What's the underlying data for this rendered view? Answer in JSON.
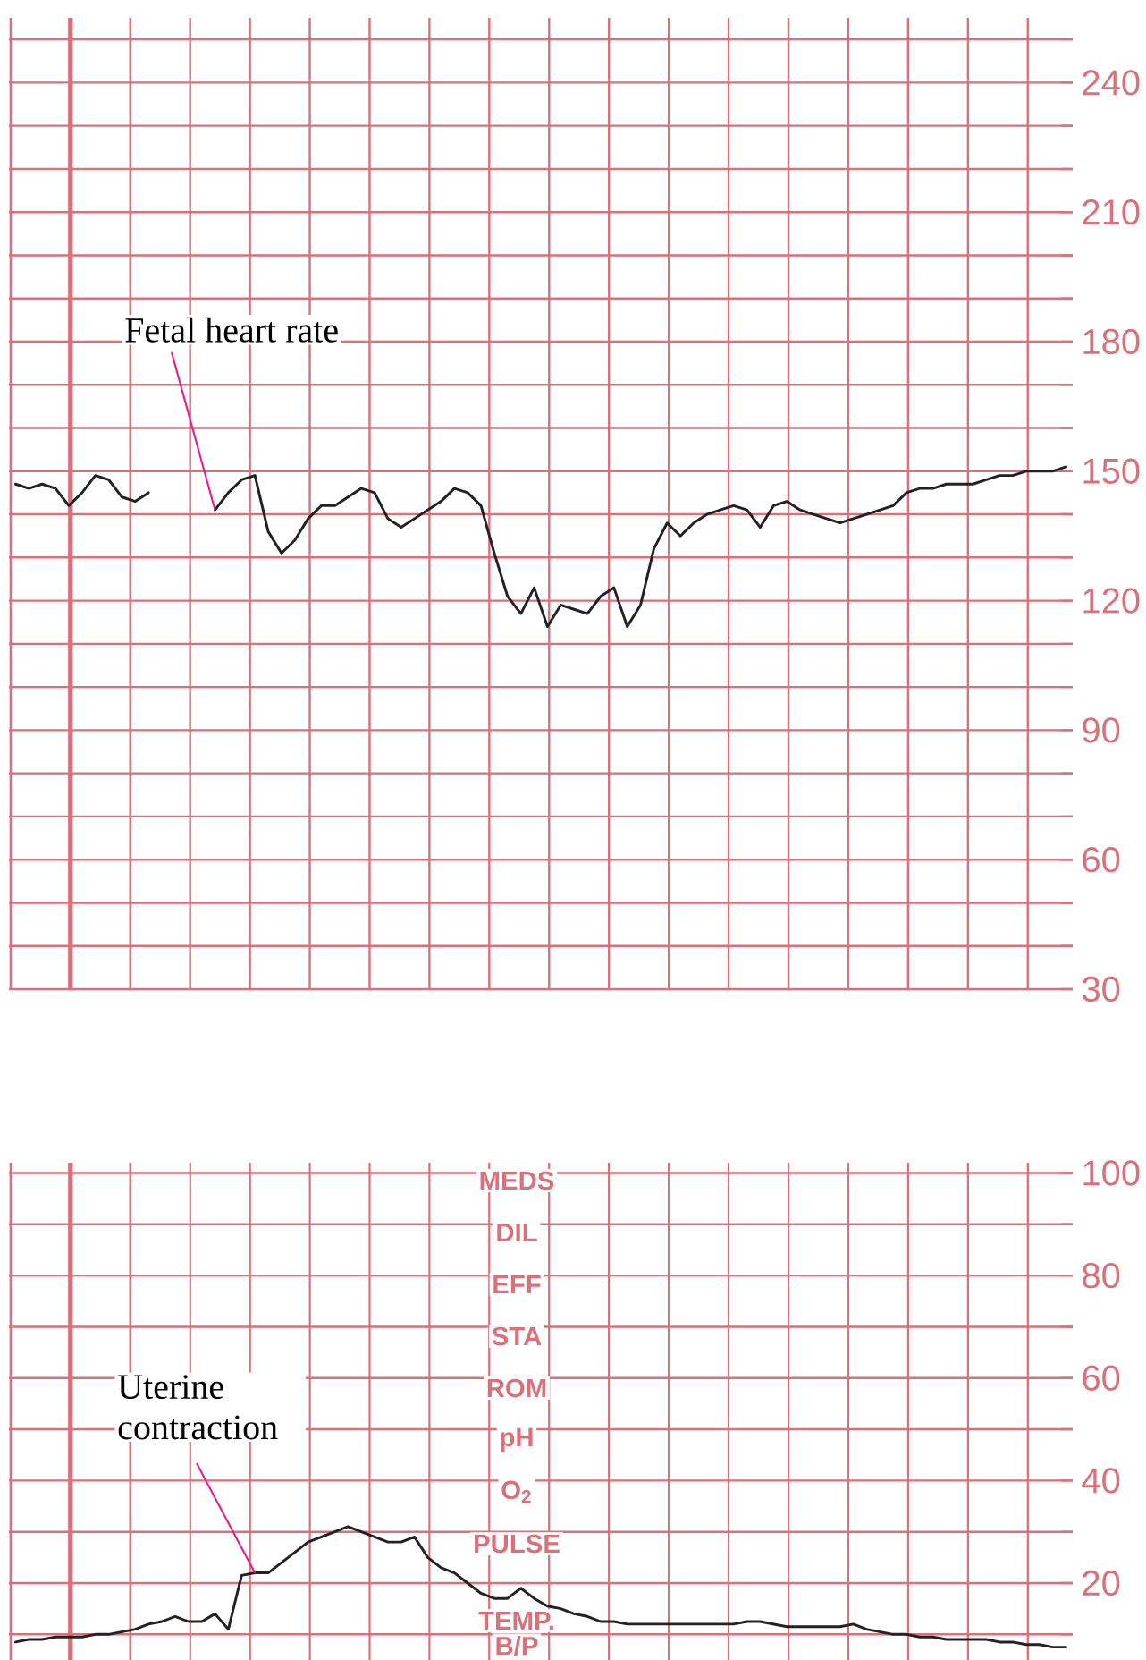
{
  "chart_data": [
    {
      "type": "line",
      "categories": [
        null,
        null,
        null,
        null,
        null,
        null,
        null,
        null,
        null,
        null,
        null,
        null,
        null,
        null,
        null,
        null,
        null,
        null,
        null,
        null,
        null,
        null,
        null,
        null,
        null,
        null,
        null,
        null,
        null,
        null,
        null,
        null,
        null,
        null,
        null,
        null,
        null,
        null,
        null,
        null,
        null,
        null,
        null,
        null,
        null,
        null,
        null,
        null,
        null,
        null,
        null,
        null,
        null,
        null,
        null,
        null,
        null,
        null,
        null,
        null,
        null,
        null,
        null,
        null,
        null,
        null,
        null,
        null,
        null,
        null,
        null,
        null,
        null,
        null,
        null,
        null,
        null,
        null,
        null,
        null
      ],
      "series": [
        {
          "color": "#222222",
          "values": [
            147,
            146,
            147,
            146,
            142,
            145,
            149,
            148,
            144,
            143,
            145,
            null,
            null,
            null,
            null,
            null,
            null,
            null,
            null,
            null,
            null,
            null,
            null,
            null,
            null,
            null,
            null,
            null,
            null,
            null,
            null,
            null,
            null,
            null,
            null,
            null,
            null,
            null,
            null,
            null,
            null,
            null,
            null,
            null,
            null,
            null,
            null,
            null,
            null,
            null,
            null,
            null,
            null,
            null,
            null,
            null,
            null,
            null,
            null,
            null,
            null,
            null,
            null,
            null,
            null,
            null,
            null,
            null,
            null,
            null,
            null,
            null,
            null,
            null,
            null,
            null,
            null,
            null,
            null,
            null
          ]
        },
        {
          "color": "#222222",
          "values": [
            null,
            null,
            null,
            null,
            null,
            null,
            null,
            null,
            null,
            null,
            null,
            null,
            null,
            null,
            null,
            141,
            145,
            148,
            149,
            136,
            131,
            134,
            139,
            142,
            142,
            144,
            146,
            145,
            139,
            137,
            139,
            141,
            143,
            146,
            145,
            142,
            131,
            121,
            117,
            123,
            114,
            119,
            118,
            117,
            121,
            123,
            114,
            119,
            132,
            138,
            135,
            138,
            140,
            141,
            142,
            141,
            137,
            142,
            143,
            141,
            140,
            139,
            138,
            139,
            140,
            141,
            142,
            145,
            146,
            146,
            147,
            147,
            147,
            148,
            149,
            149,
            150,
            150,
            150,
            151
          ]
        }
      ],
      "ylim": [
        30,
        255
      ],
      "yticks": [
        30,
        {
          "value": 40,
          "label": null
        },
        {
          "value": 50,
          "label": null
        },
        60,
        {
          "value": 70,
          "label": null
        },
        {
          "value": 80,
          "label": null
        },
        90,
        {
          "value": 100,
          "label": null
        },
        {
          "value": 110,
          "label": null
        },
        120,
        {
          "value": 130,
          "label": null
        },
        {
          "value": 140,
          "label": null
        },
        150,
        {
          "value": 160,
          "label": null
        },
        {
          "value": 170,
          "label": null
        },
        180,
        {
          "value": 190,
          "label": null
        },
        {
          "value": 200,
          "label": null
        },
        210,
        {
          "value": 220,
          "label": null
        },
        {
          "value": 230,
          "label": null
        },
        240,
        {
          "value": 250,
          "label": null
        }
      ],
      "grid": true,
      "tick_labels": "y",
      "annotations": [
        "Fetal heart rate"
      ]
    },
    {
      "type": "line",
      "categories": [
        null,
        null,
        null,
        null,
        null,
        null,
        null,
        null,
        null,
        null,
        null,
        null,
        null,
        null,
        null,
        null,
        null,
        null,
        null,
        null,
        null,
        null,
        null,
        null,
        null,
        null,
        null,
        null,
        null,
        null,
        null,
        null,
        null,
        null,
        null,
        null,
        null,
        null,
        null,
        null,
        null,
        null,
        null,
        null,
        null,
        null,
        null,
        null,
        null,
        null,
        null,
        null,
        null,
        null,
        null,
        null,
        null,
        null,
        null,
        null,
        null,
        null,
        null,
        null,
        null,
        null,
        null,
        null,
        null,
        null,
        null,
        null,
        null,
        null,
        null,
        null,
        null,
        null,
        null,
        null
      ],
      "series": [
        {
          "color": "#222222",
          "values": [
            8.5,
            9,
            9,
            9.5,
            9.5,
            9.5,
            10,
            10,
            10.5,
            11,
            12,
            12.5,
            13.5,
            12.5,
            12.5,
            14,
            11,
            21.5,
            22,
            22,
            24,
            26,
            28,
            29,
            30,
            31,
            30,
            29,
            28,
            28,
            29,
            25,
            23,
            22,
            20,
            18,
            17,
            17,
            19,
            17,
            15.5,
            15,
            14,
            13.5,
            12.5,
            12.5,
            12,
            12,
            12,
            12,
            12,
            12,
            12,
            12,
            12,
            12.5,
            12.5,
            12,
            11.5,
            11.5,
            11.5,
            11.5,
            11.5,
            12,
            11,
            10.5,
            10,
            10,
            9.5,
            9.5,
            9,
            9,
            9,
            9,
            8.5,
            8.5,
            8,
            8,
            7.5,
            7.5
          ]
        }
      ],
      "ylim": [
        5,
        102
      ],
      "yticks": [
        {
          "value": 10,
          "label": null
        },
        20,
        {
          "value": 30,
          "label": null
        },
        40,
        {
          "value": 50,
          "label": null
        },
        60,
        {
          "value": 70,
          "label": null
        },
        80,
        {
          "value": 90,
          "label": null
        },
        100
      ],
      "grid": true,
      "tick_labels": "y",
      "annotations": [
        "Uterine contraction",
        "MEDS",
        "DIL",
        "EFF",
        "STA",
        "ROM",
        "pH",
        "O$_{2}$",
        "PULSE",
        "TEMP.",
        "B/P"
      ]
    }
  ]
}
